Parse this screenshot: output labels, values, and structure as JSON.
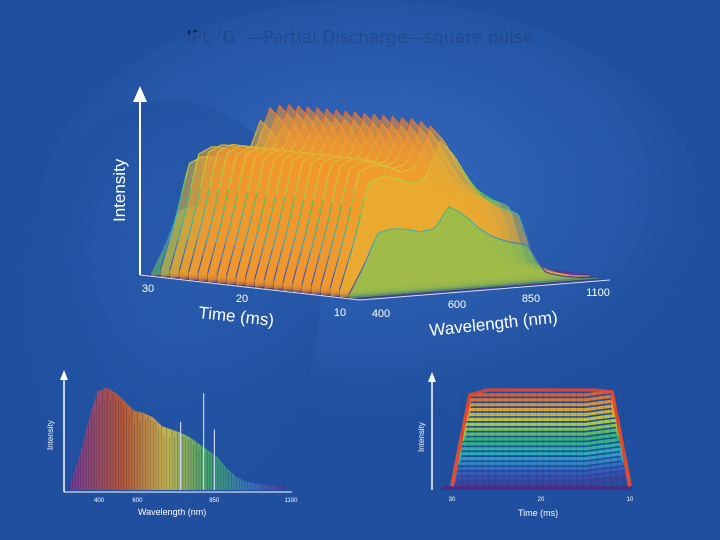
{
  "slide": {
    "title": "IPL ‘G’ —Partial Discharge—square pulse",
    "background_color": "#1f4f9e"
  },
  "chart_data": [
    {
      "type": "surface3d",
      "title": "",
      "xlabel": "Wavelength (nm)",
      "ylabel": "Time (ms)",
      "zlabel": "Intensity",
      "wavelength_ticks": [
        "400",
        "600",
        "850",
        "1100"
      ],
      "time_ticks": [
        "30",
        "20",
        "10"
      ],
      "wavelength_range": [
        400,
        1100
      ],
      "time_range": [
        10,
        30
      ],
      "colormap": [
        "#5b2b8f",
        "#3a5fc4",
        "#2db6c8",
        "#36c46b",
        "#c8d83a",
        "#f2a12e",
        "#e8452c"
      ],
      "wavelength_profile": {
        "wavelength": [
          400,
          440,
          480,
          520,
          560,
          600,
          640,
          680,
          720,
          760,
          800,
          850,
          900,
          950,
          1000,
          1050,
          1100
        ],
        "intensity": [
          0.05,
          0.35,
          0.72,
          0.76,
          0.74,
          0.7,
          0.72,
          0.96,
          0.86,
          0.7,
          0.58,
          0.5,
          0.45,
          0.12,
          0.06,
          0.03,
          0.02
        ]
      },
      "time_profile": {
        "time": [
          30,
          28,
          26,
          22,
          18,
          14,
          12,
          10
        ],
        "intensity": [
          0.05,
          0.95,
          1.0,
          1.0,
          1.0,
          1.0,
          0.95,
          0.05
        ]
      }
    },
    {
      "type": "spectrum",
      "xlabel": "Wavelength (nm)",
      "ylabel": "Intensity",
      "x_ticks": [
        "600",
        "850",
        "1100"
      ],
      "extra_tick": "400",
      "x": [
        400,
        430,
        460,
        490,
        520,
        550,
        580,
        610,
        640,
        670,
        700,
        730,
        760,
        790,
        820,
        850,
        880,
        910,
        940,
        970,
        1000,
        1030,
        1060,
        1100
      ],
      "y": [
        0.05,
        0.3,
        0.62,
        0.9,
        0.93,
        0.88,
        0.8,
        0.72,
        0.7,
        0.66,
        0.58,
        0.55,
        0.52,
        0.48,
        0.42,
        0.36,
        0.3,
        0.2,
        0.12,
        0.08,
        0.06,
        0.05,
        0.04,
        0.03
      ]
    },
    {
      "type": "time_slices",
      "xlabel": "Time (ms)",
      "ylabel": "Intensity",
      "x_ticks": [
        "30",
        "20",
        "10"
      ],
      "x": [
        30,
        28,
        26,
        22,
        18,
        14,
        12,
        10
      ],
      "y": [
        0.02,
        0.95,
        1.0,
        1.0,
        1.0,
        1.0,
        0.98,
        0.02
      ]
    }
  ]
}
